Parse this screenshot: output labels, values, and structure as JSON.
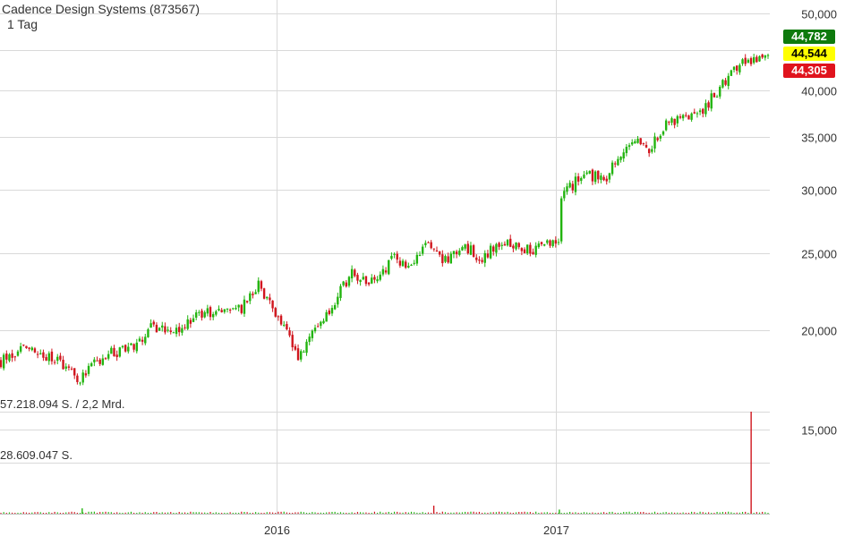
{
  "chart_data": {
    "type": "candlestick",
    "title": "Cadence Design Systems (873567)",
    "subtitle": "1 Tag",
    "y_axis": {
      "scale": "log",
      "ylim": [
        16.5,
        52
      ],
      "ticks": [
        {
          "value": 50,
          "label": "50,000"
        },
        {
          "value": 40,
          "label": "40,000"
        },
        {
          "value": 35,
          "label": "35,000"
        },
        {
          "value": 30,
          "label": "30,000"
        },
        {
          "value": 25,
          "label": "25,000"
        },
        {
          "value": 20,
          "label": "20,000"
        },
        {
          "value": 15,
          "label": "15,000"
        }
      ],
      "extra_gridlines": [
        45
      ]
    },
    "x_axis": {
      "range": [
        "2015-01-02",
        "2017-10-06"
      ],
      "ticks": [
        {
          "date": "2016-01-01",
          "label": "2016"
        },
        {
          "date": "2017-01-01",
          "label": "2017"
        }
      ]
    },
    "grid": true,
    "price_path": [
      [
        "2015-01-02",
        18.3
      ],
      [
        "2015-02-01",
        19.0
      ],
      [
        "2015-03-15",
        18.3
      ],
      [
        "2015-04-15",
        17.4
      ],
      [
        "2015-05-20",
        18.6
      ],
      [
        "2015-06-25",
        19.1
      ],
      [
        "2015-07-20",
        20.2
      ],
      [
        "2015-08-25",
        19.8
      ],
      [
        "2015-09-15",
        21.1
      ],
      [
        "2015-10-25",
        21.1
      ],
      [
        "2015-11-15",
        21.4
      ],
      [
        "2015-12-05",
        22.8
      ],
      [
        "2015-12-25",
        21.4
      ],
      [
        "2016-01-18",
        19.5
      ],
      [
        "2016-01-28",
        18.6
      ],
      [
        "2016-02-15",
        19.8
      ],
      [
        "2016-03-10",
        21.4
      ],
      [
        "2016-04-05",
        23.5
      ],
      [
        "2016-05-05",
        23.1
      ],
      [
        "2016-06-01",
        24.6
      ],
      [
        "2016-06-20",
        23.8
      ],
      [
        "2016-07-15",
        25.6
      ],
      [
        "2016-08-10",
        24.4
      ],
      [
        "2016-09-05",
        25.4
      ],
      [
        "2016-09-25",
        24.6
      ],
      [
        "2016-10-20",
        25.9
      ],
      [
        "2016-11-15",
        25.2
      ],
      [
        "2016-12-10",
        25.4
      ],
      [
        "2017-01-05",
        25.8
      ],
      [
        "2017-01-08",
        29.5
      ],
      [
        "2017-02-05",
        31.3
      ],
      [
        "2017-03-05",
        31.0
      ],
      [
        "2017-03-25",
        33.0
      ],
      [
        "2017-04-10",
        35.0
      ],
      [
        "2017-05-01",
        33.4
      ],
      [
        "2017-05-25",
        36.2
      ],
      [
        "2017-06-20",
        37.2
      ],
      [
        "2017-07-15",
        38.0
      ],
      [
        "2017-08-10",
        41.3
      ],
      [
        "2017-09-10",
        43.6
      ],
      [
        "2017-10-06",
        44.6
      ]
    ],
    "price_badges": [
      {
        "label": "44,782",
        "value": 44.782,
        "color": "#0e7a0d",
        "text_color": "#ffffff"
      },
      {
        "label": "44,544",
        "value": 44.544,
        "color": "#ffff00",
        "text_color": "#000000"
      },
      {
        "label": "44,305",
        "value": 44.305,
        "color": "#e0131d",
        "text_color": "#ffffff"
      }
    ],
    "volume": {
      "label_max": "57.218.094 S. / 2,2 Mrd.",
      "label_half": "28.609.047 S.",
      "max": 57218094,
      "half": 28609047,
      "spikes": [
        {
          "date": "2015-04-20",
          "value": 3000000
        },
        {
          "date": "2016-07-25",
          "value": 4500000
        },
        {
          "date": "2017-01-06",
          "value": 2300000
        },
        {
          "date": "2017-09-15",
          "value": 57218094
        }
      ],
      "baseline_value": 450000
    },
    "colors": {
      "up": "#22b40f",
      "down": "#d0161e",
      "grid": "#d9d9d9",
      "axis_text": "#333333"
    }
  }
}
